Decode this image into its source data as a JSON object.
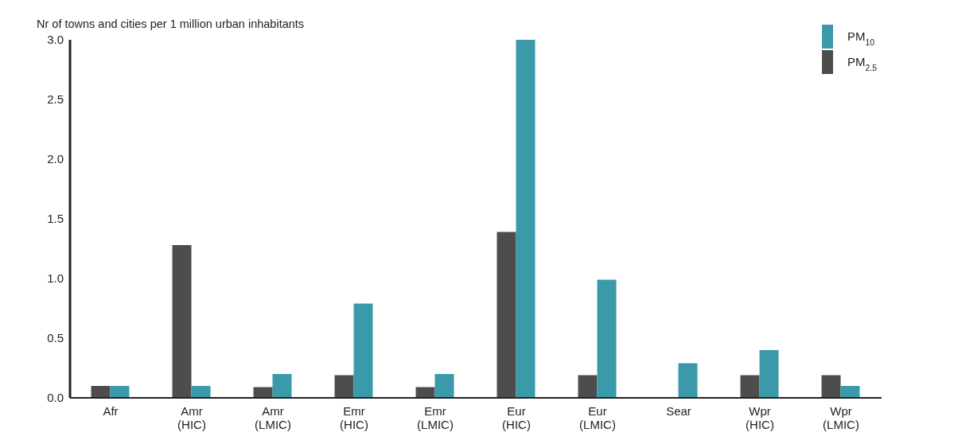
{
  "chart_data": {
    "type": "bar",
    "ylabel": "Nr of towns and cities per 1 million urban inhabitants",
    "categories": [
      "Afr",
      "Amr (HIC)",
      "Amr (LMIC)",
      "Emr (HIC)",
      "Emr (LMIC)",
      "Eur (HIC)",
      "Eur (LMIC)",
      "Sear",
      "Wpr (HIC)",
      "Wpr (LMIC)"
    ],
    "series": [
      {
        "name": "PM$_{2.5}$",
        "color": "#4d4d4d",
        "values": [
          0.1,
          1.28,
          0.09,
          0.19,
          0.09,
          1.39,
          0.19,
          null,
          0.19,
          0.19
        ]
      },
      {
        "name": "PM$_{10}$",
        "color": "#3a9aaa",
        "values": [
          0.1,
          0.1,
          0.2,
          0.79,
          0.2,
          3.0,
          0.99,
          0.29,
          0.4,
          0.1
        ]
      }
    ],
    "ylim": [
      0,
      3
    ],
    "yticks": [
      {
        "value": 0,
        "label": "0.0"
      },
      0.5,
      {
        "value": 1,
        "label": "1.0"
      },
      1.5,
      {
        "value": 2,
        "label": "2.0"
      },
      2.5,
      {
        "value": 3,
        "label": "3.0"
      }
    ],
    "grid": false,
    "legend": "top right"
  }
}
